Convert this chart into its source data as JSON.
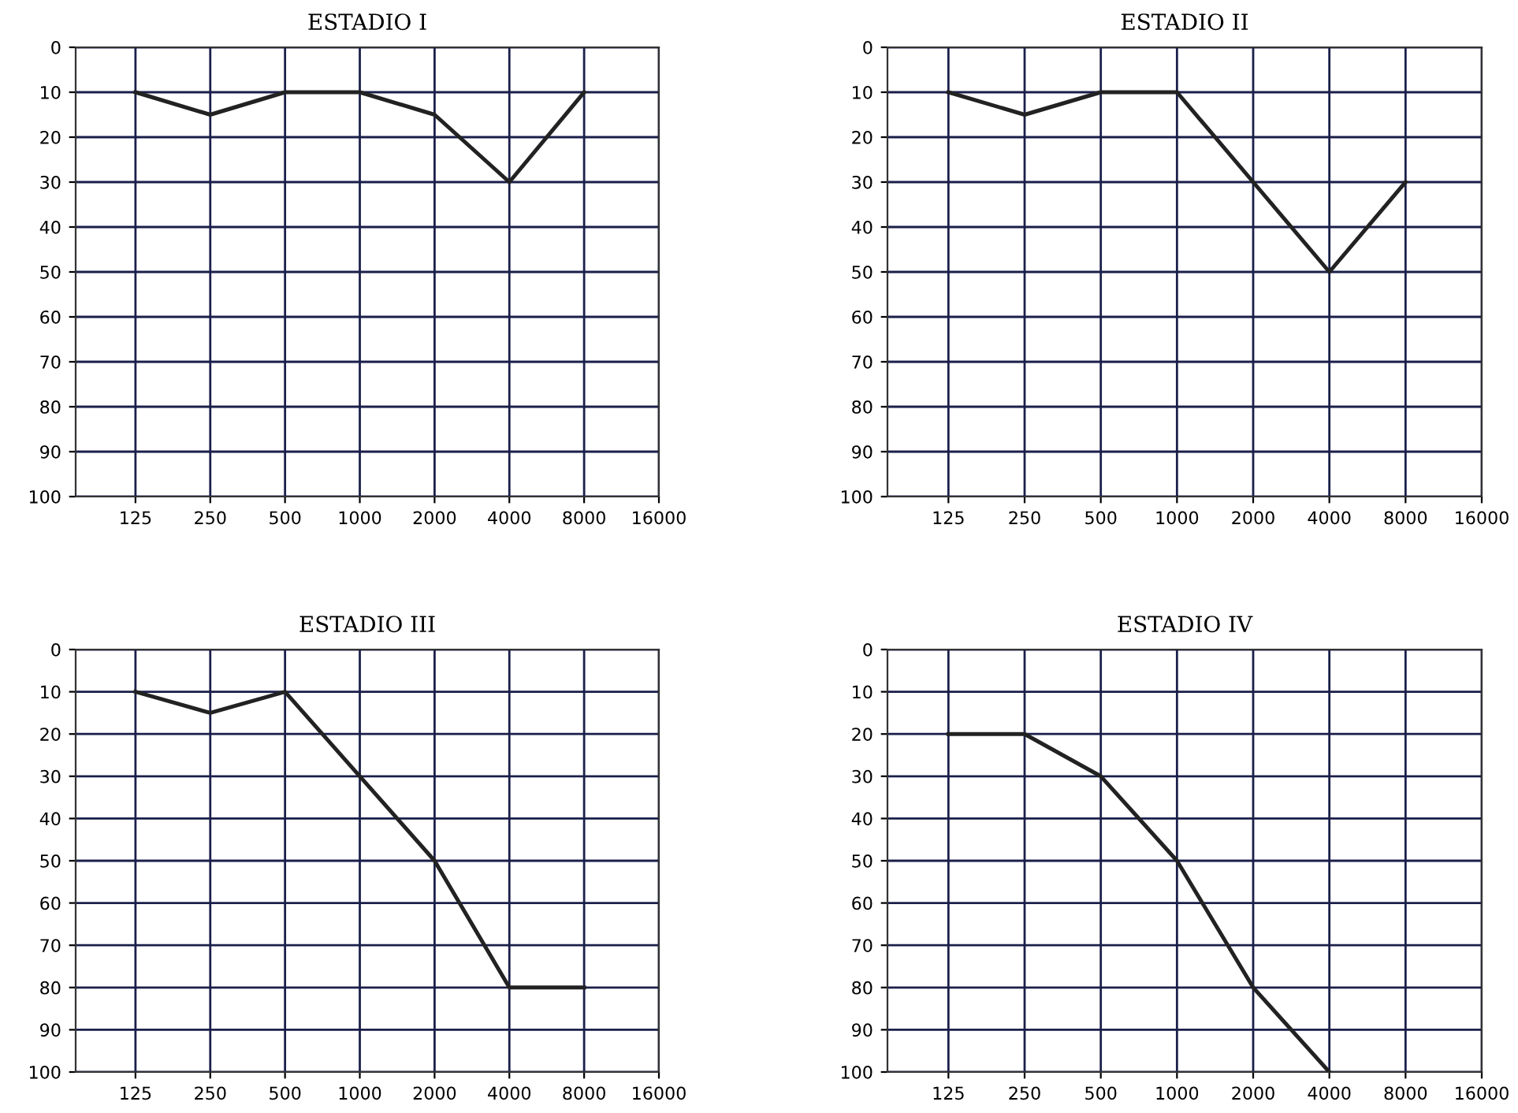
{
  "chart_data": [
    {
      "type": "line",
      "title": "ESTADIO I",
      "categories": [
        "125",
        "250",
        "500",
        "1000",
        "2000",
        "4000",
        "8000",
        "16000"
      ],
      "series": [
        {
          "color": "#222222",
          "values": [
            10,
            15,
            10,
            10,
            15,
            30,
            10,
            null
          ]
        }
      ],
      "ylim": [
        100,
        0
      ],
      "yticks": [
        0,
        10,
        20,
        30,
        40,
        50,
        60,
        70,
        80,
        90,
        100
      ],
      "grid": true,
      "marker": "none",
      "line_style": "solid"
    },
    {
      "type": "line",
      "title": "ESTADIO II",
      "categories": [
        "125",
        "250",
        "500",
        "1000",
        "2000",
        "4000",
        "8000",
        "16000"
      ],
      "series": [
        {
          "color": "#222222",
          "values": [
            10,
            15,
            10,
            10,
            30,
            50,
            30,
            null
          ]
        }
      ],
      "ylim": [
        100,
        0
      ],
      "yticks": [
        0,
        10,
        20,
        30,
        40,
        50,
        60,
        70,
        80,
        90,
        100
      ],
      "grid": true,
      "marker": "none",
      "line_style": "solid"
    },
    {
      "type": "line",
      "title": "ESTADIO III",
      "categories": [
        "125",
        "250",
        "500",
        "1000",
        "2000",
        "4000",
        "8000",
        "16000"
      ],
      "series": [
        {
          "color": "#222222",
          "values": [
            10,
            15,
            10,
            30,
            50,
            80,
            80,
            null
          ]
        }
      ],
      "ylim": [
        100,
        0
      ],
      "yticks": [
        0,
        10,
        20,
        30,
        40,
        50,
        60,
        70,
        80,
        90,
        100
      ],
      "grid": true,
      "marker": "none",
      "line_style": "solid"
    },
    {
      "type": "line",
      "title": "ESTADIO IV",
      "categories": [
        "125",
        "250",
        "500",
        "1000",
        "2000",
        "4000",
        "8000",
        "16000"
      ],
      "series": [
        {
          "color": "#222222",
          "values": [
            20,
            20,
            30,
            50,
            80,
            100,
            null,
            null
          ]
        }
      ],
      "ylim": [
        100,
        0
      ],
      "yticks": [
        0,
        10,
        20,
        30,
        40,
        50,
        60,
        70,
        80,
        90,
        100
      ],
      "grid": true,
      "marker": "none",
      "line_style": "solid"
    }
  ]
}
